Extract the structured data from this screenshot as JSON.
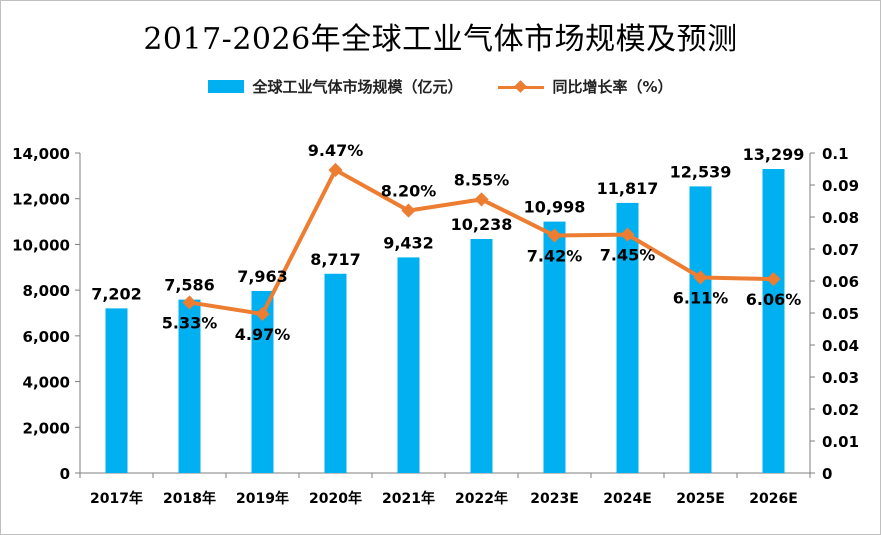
{
  "chart_data": {
    "type": "bar",
    "title": "2017-2026年全球工业气体市场规模及预测",
    "categories": [
      "2017年",
      "2018年",
      "2019年",
      "2020年",
      "2021年",
      "2022年",
      "2023E",
      "2024E",
      "2025E",
      "2026E"
    ],
    "series": [
      {
        "name": "全球工业气体市场规模（亿元）",
        "type": "bar",
        "axis": "left",
        "values": [
          7202,
          7586,
          7963,
          8717,
          9432,
          10238,
          10998,
          11817,
          12539,
          13299
        ],
        "labels": [
          "7,202",
          "7,586",
          "7,963",
          "8,717",
          "9,432",
          "10,238",
          "10,998",
          "11,817",
          "12,539",
          "13,299"
        ]
      },
      {
        "name": "同比增长率（%）",
        "type": "line",
        "axis": "right",
        "values": [
          null,
          0.0533,
          0.0497,
          0.0947,
          0.082,
          0.0855,
          0.0742,
          0.0745,
          0.0611,
          0.0606
        ],
        "labels": [
          "",
          "5.33%",
          "4.97%",
          "9.47%",
          "8.20%",
          "8.55%",
          "7.42%",
          "7.45%",
          "6.11%",
          "6.06%"
        ]
      }
    ],
    "ylim_left": [
      0,
      14000
    ],
    "ylim_right": [
      0,
      0.1
    ],
    "y_ticks_left": [
      "0",
      "2,000",
      "4,000",
      "6,000",
      "8,000",
      "10,000",
      "12,000",
      "14,000"
    ],
    "y_ticks_right": [
      "0",
      "0.01",
      "0.02",
      "0.03",
      "0.04",
      "0.05",
      "0.06",
      "0.07",
      "0.08",
      "0.09",
      "0.1"
    ],
    "grid": false,
    "legend_position": "top-center",
    "colors": {
      "bar": "#00b0f0",
      "line": "#ed7d31",
      "text": "#000000"
    }
  }
}
